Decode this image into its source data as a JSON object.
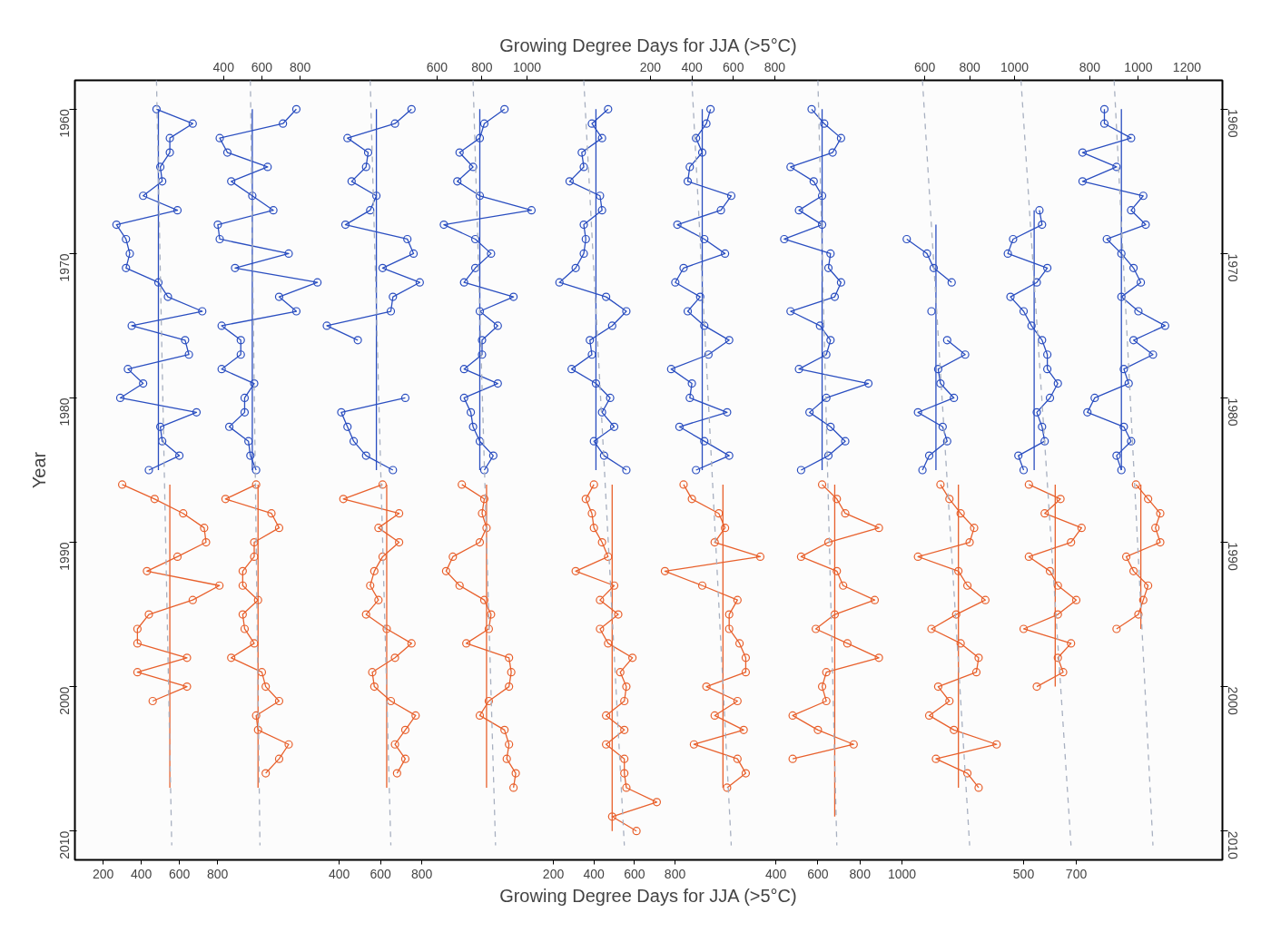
{
  "chart_data": [
    {
      "type": "line",
      "orientation": "horizontal",
      "title": "Growing Degree Days for JJA (>5°C)",
      "xlabel": "Growing Degree Days for JJA (>5°C)",
      "ylabel": "Year",
      "marker": "circle",
      "xlim": [
        52,
        6071
      ],
      "xticks": [
        200,
        400,
        600,
        800
      ],
      "ylim": [
        2012,
        1958
      ],
      "yticks": [
        1960,
        1970,
        1980,
        1990,
        2000,
        2010
      ],
      "y2lim": [
        2012,
        1958
      ],
      "y2ticks": [
        1960,
        1970,
        1980,
        1990,
        2000,
        2010
      ],
      "series": [
        {
          "color": "#2a4ec0",
          "x": [
            1960,
            1961,
            1962,
            1963,
            1964,
            1965,
            1966,
            1967,
            1968,
            1969,
            1970,
            1971,
            1972,
            1973,
            1974,
            1975,
            1976,
            1977,
            1978,
            1979,
            1980,
            1981,
            1982,
            1983,
            1984,
            1985
          ],
          "values": [
            480,
            670,
            550,
            550,
            500,
            510,
            410,
            590,
            270,
            320,
            340,
            320,
            490,
            540,
            720,
            350,
            630,
            650,
            330,
            410,
            290,
            690,
            500,
            510,
            600,
            440
          ]
        },
        {
          "color": "#e8602c",
          "x": [
            1986,
            1987,
            1988,
            1989,
            1990,
            1991,
            1992,
            1993,
            1994,
            1995,
            1996,
            1997,
            1998,
            1999,
            2000,
            2001
          ],
          "values": [
            300,
            470,
            620,
            730,
            740,
            590,
            430,
            810,
            670,
            440,
            380,
            380,
            640,
            380,
            640,
            460
          ]
        },
        {
          "color": "#2a4ec0",
          "marker": "none",
          "x": [
            1960,
            1985
          ],
          "values": [
            490,
            490
          ]
        },
        {
          "color": "#e8602c",
          "marker": "none",
          "x": [
            1986,
            2007
          ],
          "values": [
            550,
            550
          ]
        },
        {
          "color": "#a8b0c0",
          "marker": "none",
          "line_style": "dashed",
          "x": [
            1958,
            2011
          ],
          "values": [
            480,
            560
          ]
        }
      ]
    },
    {
      "type": "line",
      "orientation": "horizontal",
      "marker": "circle",
      "x2lim": [
        -376,
        5614
      ],
      "x2ticks": [
        400,
        600,
        800
      ],
      "ylim": [
        2012,
        1958
      ],
      "tick_labels": "x",
      "series": [
        {
          "axis": "x2",
          "color": "#2a4ec0",
          "x": [
            1960,
            1961,
            1962,
            1963,
            1964,
            1965,
            1966,
            1967,
            1968,
            1969,
            1970,
            1971,
            1972,
            1973,
            1974,
            1975,
            1976,
            1977,
            1978,
            1979,
            1980,
            1981,
            1982,
            1983,
            1984,
            1985
          ],
          "values": [
            780,
            710,
            380,
            420,
            630,
            440,
            550,
            660,
            370,
            380,
            740,
            460,
            890,
            690,
            780,
            390,
            490,
            490,
            390,
            560,
            510,
            510,
            430,
            530,
            540,
            570
          ]
        },
        {
          "axis": "x2",
          "color": "#e8602c",
          "x": [
            1986,
            1987,
            1988,
            1989,
            1990,
            1991,
            1992,
            1993,
            1994,
            1995,
            1996,
            1997,
            1998,
            1999,
            2000,
            2001,
            2002,
            2003,
            2004,
            2005,
            2006
          ],
          "values": [
            570,
            410,
            650,
            690,
            560,
            560,
            500,
            500,
            580,
            500,
            510,
            560,
            440,
            600,
            620,
            690,
            570,
            580,
            740,
            690,
            620
          ]
        },
        {
          "axis": "x2",
          "color": "#2a4ec0",
          "marker": "none",
          "x": [
            1960,
            1985
          ],
          "values": [
            550,
            550
          ]
        },
        {
          "axis": "x2",
          "color": "#e8602c",
          "marker": "none",
          "x": [
            1986,
            2007
          ],
          "values": [
            580,
            580
          ]
        },
        {
          "axis": "x2",
          "color": "#a8b0c0",
          "marker": "none",
          "line_style": "dashed",
          "x": [
            1958,
            2011
          ],
          "values": [
            540,
            590
          ]
        }
      ]
    },
    {
      "type": "line",
      "orientation": "horizontal",
      "marker": "circle",
      "xlim": [
        -880,
        4677
      ],
      "xticks": [
        400,
        600,
        800
      ],
      "ylim": [
        2012,
        1958
      ],
      "tick_labels": "x",
      "series": [
        {
          "color": "#2a4ec0",
          "x": [
            1960,
            1961,
            1962,
            1963,
            1964,
            1965,
            1966,
            1967,
            1968,
            1969,
            1970,
            1971,
            1972,
            1973,
            1974,
            1975,
            1976,
            1977,
            1978,
            1979,
            1980,
            1981,
            1982,
            1983,
            1984,
            1985
          ],
          "values": [
            750,
            670,
            440,
            540,
            530,
            460,
            580,
            550,
            430,
            730,
            760,
            610,
            790,
            660,
            650,
            340,
            490,
            null,
            null,
            null,
            720,
            410,
            440,
            470,
            530,
            660
          ]
        },
        {
          "color": "#e8602c",
          "x": [
            1986,
            1987,
            1988,
            1989,
            1990,
            1991,
            1992,
            1993,
            1994,
            1995,
            1996,
            1997,
            1998,
            1999,
            2000,
            2001,
            2002,
            2003,
            2004,
            2005,
            2006
          ],
          "values": [
            610,
            420,
            690,
            590,
            690,
            610,
            570,
            550,
            590,
            530,
            630,
            750,
            670,
            560,
            570,
            650,
            770,
            720,
            670,
            720,
            680
          ]
        },
        {
          "color": "#2a4ec0",
          "marker": "none",
          "x": [
            1960,
            1985
          ],
          "values": [
            580,
            580
          ]
        },
        {
          "color": "#e8602c",
          "marker": "none",
          "x": [
            1986,
            2007
          ],
          "values": [
            630,
            630
          ]
        },
        {
          "color": "#a8b0c0",
          "marker": "none",
          "line_style": "dashed",
          "x": [
            1958,
            2011
          ],
          "values": [
            550,
            650
          ]
        }
      ]
    },
    {
      "type": "line",
      "orientation": "horizontal",
      "marker": "circle",
      "x2lim": [
        -1012,
        4095
      ],
      "x2ticks": [
        600,
        800,
        1000
      ],
      "ylim": [
        2012,
        1958
      ],
      "tick_labels": "x",
      "series": [
        {
          "axis": "x2",
          "color": "#2a4ec0",
          "x": [
            1960,
            1961,
            1962,
            1963,
            1964,
            1965,
            1966,
            1967,
            1968,
            1969,
            1970,
            1971,
            1972,
            1973,
            1974,
            1975,
            1976,
            1977,
            1978,
            1979,
            1980,
            1981,
            1982,
            1983,
            1984,
            1985
          ],
          "values": [
            900,
            810,
            790,
            700,
            760,
            690,
            790,
            1020,
            630,
            770,
            840,
            770,
            720,
            940,
            790,
            870,
            800,
            800,
            720,
            870,
            720,
            750,
            760,
            790,
            850,
            810
          ]
        },
        {
          "axis": "x2",
          "color": "#e8602c",
          "x": [
            1986,
            1987,
            1988,
            1989,
            1990,
            1991,
            1992,
            1993,
            1994,
            1995,
            1996,
            1997,
            1998,
            1999,
            2000,
            2001,
            2002,
            2003,
            2004,
            2005,
            2006,
            2007
          ],
          "values": [
            710,
            810,
            800,
            820,
            790,
            670,
            640,
            700,
            810,
            840,
            830,
            730,
            920,
            930,
            920,
            830,
            790,
            900,
            920,
            910,
            950,
            940
          ]
        },
        {
          "axis": "x2",
          "color": "#2a4ec0",
          "marker": "none",
          "x": [
            1960,
            1985
          ],
          "values": [
            790,
            790
          ]
        },
        {
          "axis": "x2",
          "color": "#e8602c",
          "marker": "none",
          "x": [
            1986,
            2007
          ],
          "values": [
            820,
            820
          ]
        },
        {
          "axis": "x2",
          "color": "#a8b0c0",
          "marker": "none",
          "line_style": "dashed",
          "x": [
            1958,
            2011
          ],
          "values": [
            760,
            860
          ]
        }
      ]
    },
    {
      "type": "line",
      "orientation": "horizontal",
      "marker": "circle",
      "xlim": [
        -2160,
        3500
      ],
      "xticks": [
        200,
        400,
        600,
        800
      ],
      "ylim": [
        2012,
        1958
      ],
      "tick_labels": "x",
      "series": [
        {
          "color": "#2a4ec0",
          "x": [
            1960,
            1961,
            1962,
            1963,
            1964,
            1965,
            1966,
            1967,
            1968,
            1969,
            1970,
            1971,
            1972,
            1973,
            1974,
            1975,
            1976,
            1977,
            1978,
            1979,
            1980,
            1981,
            1982,
            1983,
            1984,
            1985
          ],
          "values": [
            470,
            390,
            440,
            340,
            350,
            280,
            430,
            440,
            350,
            360,
            350,
            310,
            230,
            460,
            560,
            490,
            380,
            390,
            290,
            410,
            480,
            440,
            500,
            400,
            450,
            560
          ]
        },
        {
          "color": "#e8602c",
          "x": [
            1986,
            1987,
            1988,
            1989,
            1990,
            1991,
            1992,
            1993,
            1994,
            1995,
            1996,
            1997,
            1998,
            1999,
            2000,
            2001,
            2002,
            2003,
            2004,
            2005,
            2006,
            2007,
            2008,
            2009,
            2010
          ],
          "values": [
            400,
            360,
            390,
            400,
            440,
            470,
            310,
            500,
            430,
            520,
            430,
            470,
            590,
            530,
            560,
            550,
            460,
            550,
            460,
            550,
            550,
            560,
            710,
            490,
            610
          ]
        },
        {
          "color": "#2a4ec0",
          "marker": "none",
          "x": [
            1960,
            1985
          ],
          "values": [
            410,
            410
          ]
        },
        {
          "color": "#e8602c",
          "marker": "none",
          "x": [
            1986,
            2010
          ],
          "values": [
            490,
            490
          ]
        },
        {
          "color": "#a8b0c0",
          "marker": "none",
          "line_style": "dashed",
          "x": [
            1958,
            2011
          ],
          "values": [
            350,
            550
          ]
        }
      ]
    },
    {
      "type": "line",
      "orientation": "horizontal",
      "marker": "circle",
      "x2lim": [
        -2577,
        2960
      ],
      "x2ticks": [
        200,
        400,
        600,
        800
      ],
      "ylim": [
        2012,
        1958
      ],
      "tick_labels": "x",
      "series": [
        {
          "axis": "x2",
          "color": "#2a4ec0",
          "x": [
            1960,
            1961,
            1962,
            1963,
            1964,
            1965,
            1966,
            1967,
            1968,
            1969,
            1970,
            1971,
            1972,
            1973,
            1974,
            1975,
            1976,
            1977,
            1978,
            1979,
            1980,
            1981,
            1982,
            1983,
            1984,
            1985
          ],
          "values": [
            490,
            470,
            420,
            450,
            390,
            380,
            590,
            540,
            330,
            460,
            560,
            360,
            320,
            440,
            380,
            460,
            580,
            480,
            300,
            400,
            390,
            570,
            340,
            460,
            580,
            420
          ]
        },
        {
          "axis": "x2",
          "color": "#e8602c",
          "x": [
            1986,
            1987,
            1988,
            1989,
            1990,
            1991,
            1992,
            1993,
            1994,
            1995,
            1996,
            1997,
            1998,
            1999,
            2000,
            2001,
            2002,
            2003,
            2004,
            2005,
            2006,
            2007
          ],
          "values": [
            360,
            400,
            530,
            560,
            510,
            730,
            270,
            450,
            620,
            580,
            580,
            630,
            660,
            660,
            470,
            620,
            510,
            650,
            410,
            620,
            660,
            570
          ]
        },
        {
          "axis": "x2",
          "color": "#2a4ec0",
          "marker": "none",
          "x": [
            1960,
            1985
          ],
          "values": [
            450,
            450
          ]
        },
        {
          "axis": "x2",
          "color": "#e8602c",
          "marker": "none",
          "x": [
            1986,
            2007
          ],
          "values": [
            550,
            550
          ]
        },
        {
          "axis": "x2",
          "color": "#a8b0c0",
          "marker": "none",
          "line_style": "dashed",
          "x": [
            1958,
            2011
          ],
          "values": [
            400,
            590
          ]
        }
      ]
    },
    {
      "type": "line",
      "orientation": "horizontal",
      "marker": "circle",
      "xlim": [
        -2932,
        2523
      ],
      "xticks": [
        400,
        600,
        800,
        1000
      ],
      "ylim": [
        2012,
        1958
      ],
      "tick_labels": "x",
      "series": [
        {
          "color": "#2a4ec0",
          "x": [
            1960,
            1961,
            1962,
            1963,
            1964,
            1965,
            1966,
            1967,
            1968,
            1969,
            1970,
            1971,
            1972,
            1973,
            1974,
            1975,
            1976,
            1977,
            1978,
            1979,
            1980,
            1981,
            1982,
            1983,
            1984,
            1985
          ],
          "values": [
            570,
            630,
            710,
            670,
            470,
            580,
            620,
            510,
            620,
            440,
            660,
            650,
            710,
            680,
            470,
            610,
            660,
            640,
            510,
            840,
            640,
            560,
            660,
            730,
            650,
            520
          ]
        },
        {
          "color": "#e8602c",
          "x": [
            1986,
            1987,
            1988,
            1989,
            1990,
            1991,
            1992,
            1993,
            1994,
            1995,
            1996,
            1997,
            1998,
            1999,
            2000,
            2001,
            2002,
            2003,
            2004,
            2005
          ],
          "values": [
            620,
            690,
            730,
            890,
            650,
            520,
            690,
            720,
            870,
            680,
            590,
            740,
            890,
            640,
            620,
            640,
            480,
            600,
            770,
            480
          ]
        },
        {
          "color": "#2a4ec0",
          "marker": "none",
          "x": [
            1960,
            1985
          ],
          "values": [
            620,
            620
          ]
        },
        {
          "color": "#e8602c",
          "marker": "none",
          "x": [
            1986,
            2009
          ],
          "values": [
            680,
            680
          ]
        },
        {
          "color": "#a8b0c0",
          "marker": "none",
          "line_style": "dashed",
          "x": [
            1958,
            2011
          ],
          "values": [
            600,
            690
          ]
        }
      ]
    },
    {
      "type": "line",
      "orientation": "horizontal",
      "marker": "circle",
      "x2lim": [
        -3182,
        1925
      ],
      "x2ticks": [
        600,
        800,
        1000
      ],
      "ylim": [
        2012,
        1958
      ],
      "tick_labels": "x",
      "series": [
        {
          "axis": "x2",
          "color": "#2a4ec0",
          "x": [
            1969,
            1970,
            1971,
            1972,
            1973,
            1974,
            1975,
            1976,
            1977,
            1978,
            1979,
            1980,
            1981,
            1982,
            1983,
            1984,
            1985
          ],
          "values": [
            520,
            610,
            640,
            720,
            null,
            630,
            null,
            700,
            780,
            660,
            670,
            730,
            570,
            680,
            700,
            620,
            590
          ]
        },
        {
          "axis": "x2",
          "color": "#e8602c",
          "x": [
            1986,
            1987,
            1988,
            1989,
            1990,
            1991,
            1992,
            1993,
            1994,
            1995,
            1996,
            1997,
            1998,
            1999,
            2000,
            2001,
            2002,
            2003,
            2004,
            2005,
            2006,
            2007
          ],
          "values": [
            670,
            710,
            760,
            820,
            800,
            570,
            750,
            790,
            870,
            740,
            630,
            760,
            840,
            830,
            660,
            710,
            620,
            730,
            920,
            650,
            790,
            840
          ]
        },
        {
          "axis": "x2",
          "color": "#2a4ec0",
          "marker": "none",
          "x": [
            1968,
            1985
          ],
          "values": [
            650,
            650
          ]
        },
        {
          "axis": "x2",
          "color": "#e8602c",
          "marker": "none",
          "x": [
            1986,
            2007
          ],
          "values": [
            750,
            750
          ]
        },
        {
          "axis": "x2",
          "color": "#a8b0c0",
          "marker": "none",
          "line_style": "dashed",
          "x": [
            1958,
            2011
          ],
          "values": [
            590,
            800
          ]
        }
      ]
    },
    {
      "type": "line",
      "orientation": "horizontal",
      "marker": "circle",
      "xlim": [
        -3103,
        1255
      ],
      "xticks": [
        500,
        700
      ],
      "ylim": [
        2012,
        1958
      ],
      "tick_labels": "x",
      "series": [
        {
          "color": "#2a4ec0",
          "x": [
            1967,
            1968,
            1969,
            1970,
            1971,
            1972,
            1973,
            1974,
            1975,
            1976,
            1977,
            1978,
            1979,
            1980,
            1981,
            1982,
            1983,
            1984,
            1985
          ],
          "values": [
            560,
            570,
            460,
            440,
            590,
            550,
            450,
            500,
            530,
            570,
            590,
            590,
            630,
            600,
            550,
            570,
            580,
            480,
            500
          ]
        },
        {
          "color": "#e8602c",
          "x": [
            1986,
            1987,
            1988,
            1989,
            1990,
            1991,
            1992,
            1993,
            1994,
            1995,
            1996,
            1997,
            1998,
            1999,
            2000
          ],
          "values": [
            520,
            640,
            580,
            720,
            680,
            520,
            600,
            630,
            700,
            630,
            500,
            680,
            630,
            650,
            550
          ]
        },
        {
          "color": "#2a4ec0",
          "marker": "none",
          "x": [
            1967,
            1985
          ],
          "values": [
            540,
            540
          ]
        },
        {
          "color": "#e8602c",
          "marker": "none",
          "x": [
            1986,
            2000
          ],
          "values": [
            620,
            620
          ]
        },
        {
          "color": "#a8b0c0",
          "marker": "none",
          "line_style": "dashed",
          "x": [
            1958,
            2011
          ],
          "values": [
            490,
            680
          ]
        }
      ]
    },
    {
      "type": "line",
      "orientation": "horizontal",
      "marker": "circle",
      "x2lim": [
        -3379,
        1346
      ],
      "x2ticks": [
        800,
        1000,
        1200
      ],
      "ylim": [
        2012,
        1958
      ],
      "tick_labels": "x",
      "series": [
        {
          "axis": "x2",
          "color": "#2a4ec0",
          "x": [
            1960,
            1961,
            1962,
            1963,
            1964,
            1965,
            1966,
            1967,
            1968,
            1969,
            1970,
            1971,
            1972,
            1973,
            1974,
            1975,
            1976,
            1977,
            1978,
            1979,
            1980,
            1981,
            1982,
            1983,
            1984,
            1985
          ],
          "values": [
            860,
            860,
            970,
            770,
            910,
            770,
            1020,
            970,
            1030,
            870,
            930,
            980,
            1010,
            930,
            1000,
            1110,
            980,
            1060,
            940,
            960,
            820,
            790,
            940,
            970,
            910,
            930
          ]
        },
        {
          "axis": "x2",
          "color": "#e8602c",
          "x": [
            1986,
            1987,
            1988,
            1989,
            1990,
            1991,
            1992,
            1993,
            1994,
            1995,
            1996
          ],
          "values": [
            990,
            1040,
            1090,
            1070,
            1090,
            950,
            980,
            1040,
            1020,
            1000,
            910
          ]
        },
        {
          "axis": "x2",
          "color": "#2a4ec0",
          "marker": "none",
          "x": [
            1960,
            1985
          ],
          "values": [
            930,
            930
          ]
        },
        {
          "axis": "x2",
          "color": "#e8602c",
          "marker": "none",
          "x": [
            1986,
            1996
          ],
          "values": [
            1010,
            1010
          ]
        },
        {
          "axis": "x2",
          "color": "#a8b0c0",
          "marker": "none",
          "line_style": "dashed",
          "x": [
            1958,
            2011
          ],
          "values": [
            900,
            1060
          ]
        }
      ]
    }
  ]
}
